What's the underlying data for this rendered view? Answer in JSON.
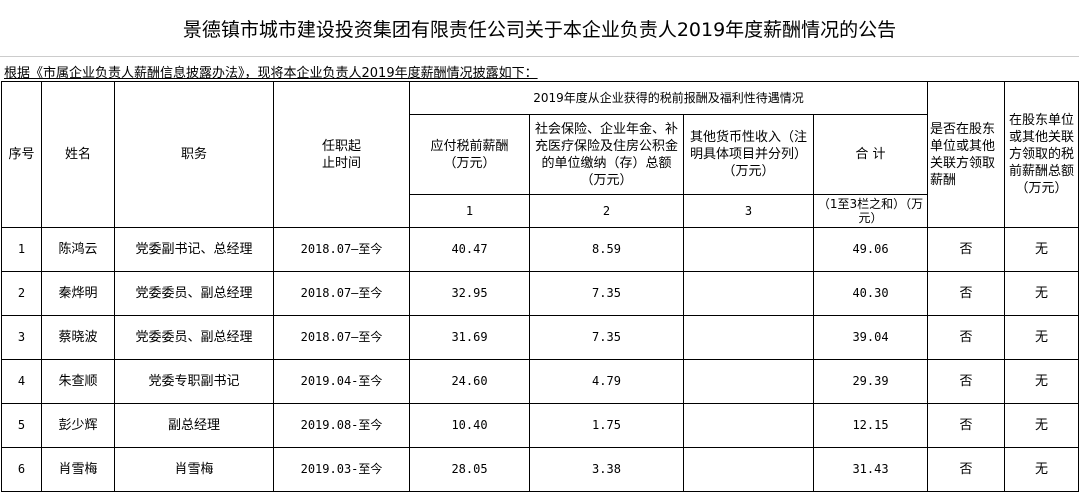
{
  "title": "景德镇市城市建设投资集团有限责任公司关于本企业负责人2019年度薪酬情况的公告",
  "intro": "根据《市属企业负责人薪酬信息披露办法》，现将本企业负责人2019年度薪酬情况披露如下：",
  "headers": {
    "seq": "序号",
    "name": "姓名",
    "position": "职务",
    "term": "任职起止时间",
    "group": "2019年度从企业获得的税前报酬及福利性待遇情况",
    "salary": "应付税前薪酬（万元）",
    "insurance": "社会保险、企业年金、补充医疗保险及住房公积金的单位缴纳（存）总额（万元）",
    "other": "其他货币性收入（注明具体项目并分列）（万元）",
    "total": "合 计",
    "shareholder": "是否在股东单位或其他关联方领取薪酬",
    "shareholder_amount": "在股东单位或其他关联方领取的税前薪酬总额（万元）",
    "col1": "1",
    "col2": "2",
    "col3": "3",
    "total_note": "（1至3栏之和）（万元）"
  },
  "rows": [
    {
      "seq": "1",
      "name": "陈鸿云",
      "position": "党委副书记、总经理",
      "term": "2018.07—至今",
      "salary": "40.47",
      "insurance": "8.59",
      "other": "",
      "total": "49.06",
      "shareholder": "否",
      "amount": "无"
    },
    {
      "seq": "2",
      "name": "秦烨明",
      "position": "党委委员、副总经理",
      "term": "2018.07—至今",
      "salary": "32.95",
      "insurance": "7.35",
      "other": "",
      "total": "40.30",
      "shareholder": "否",
      "amount": "无"
    },
    {
      "seq": "3",
      "name": "蔡晓波",
      "position": "党委委员、副总经理",
      "term": "2018.07—至今",
      "salary": "31.69",
      "insurance": "7.35",
      "other": "",
      "total": "39.04",
      "shareholder": "否",
      "amount": "无"
    },
    {
      "seq": "4",
      "name": "朱查顺",
      "position": "党委专职副书记",
      "term": "2019.04-至今",
      "salary": "24.60",
      "insurance": "4.79",
      "other": "",
      "total": "29.39",
      "shareholder": "否",
      "amount": "无"
    },
    {
      "seq": "5",
      "name": "彭少辉",
      "position": "副总经理",
      "term": "2019.08-至今",
      "salary": "10.40",
      "insurance": "1.75",
      "other": "",
      "total": "12.15",
      "shareholder": "否",
      "amount": "无"
    },
    {
      "seq": "6",
      "name": "肖雪梅",
      "position": "肖雪梅",
      "term": "2019.03-至今",
      "salary": "28.05",
      "insurance": "3.38",
      "other": "",
      "total": "31.43",
      "shareholder": "否",
      "amount": "无"
    }
  ]
}
